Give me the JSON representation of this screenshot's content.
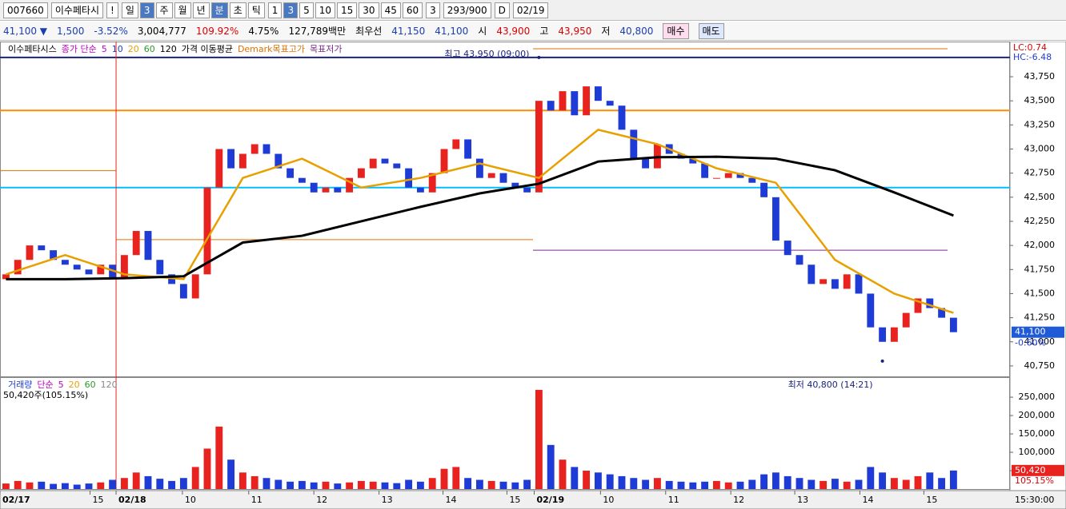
{
  "toolbar": {
    "code": "007660",
    "name": "이수페타시",
    "alert": "!",
    "periods": [
      "일",
      "3",
      "주",
      "월",
      "년",
      "분",
      "초",
      "틱"
    ],
    "intervals": [
      "1",
      "3",
      "5",
      "10",
      "15",
      "30",
      "45",
      "60"
    ],
    "count": "3",
    "shown": "293",
    "total": "/900",
    "d_label": "D",
    "date": "02/19"
  },
  "quote": {
    "price": "41,100 ▼",
    "change": "1,500",
    "rate": "-3.52%",
    "volume": "3,004,777",
    "volume_ratio": "109.92%",
    "turnover_rate": "4.75%",
    "amount": "127,789백만",
    "best_label": "최우선",
    "ask": "41,150",
    "bid": "41,100",
    "open_label": "시",
    "open": "43,900",
    "high_label": "고",
    "high": "43,950",
    "low_label": "저",
    "low": "40,800",
    "buy": "매수",
    "sell": "매도"
  },
  "chart_data": [
    {
      "type": "candlestick",
      "title": "이수페타시스",
      "ma_label": "종가 단순",
      "ma_type": "가격 이동평균",
      "demark_high": "Demark목표고가",
      "demark_low": "목표저가",
      "up_color": "#e8231f",
      "down_color": "#1f3bd6",
      "open": [
        41650,
        41700,
        41850,
        42000,
        41950,
        41850,
        41800,
        41750,
        41700,
        41800,
        41650,
        41900,
        42150,
        41850,
        41700,
        41600,
        41450,
        41700,
        42600,
        43000,
        42800,
        42950,
        43050,
        42950,
        42800,
        42700,
        42650,
        42550,
        42600,
        42550,
        42700,
        42800,
        42900,
        42850,
        42800,
        42600,
        42550,
        42750,
        43000,
        43100,
        42900,
        42700,
        42750,
        42650,
        42600,
        42550,
        43500,
        43400,
        43600,
        43350,
        43650,
        43500,
        43450,
        43200,
        42900,
        42800,
        43050,
        42950,
        42900,
        42850,
        42700,
        42700,
        42750,
        42700,
        42650,
        42500,
        42050,
        41900,
        41800,
        41600,
        41650,
        41550,
        41700,
        41500,
        41150,
        41000,
        41150,
        41300,
        41450,
        41350,
        41250
      ],
      "close": [
        41700,
        41850,
        42000,
        41950,
        41850,
        41800,
        41750,
        41700,
        41800,
        41650,
        41900,
        42150,
        41850,
        41700,
        41600,
        41450,
        41700,
        42600,
        43000,
        42800,
        42950,
        43050,
        42950,
        42800,
        42700,
        42650,
        42550,
        42600,
        42550,
        42700,
        42800,
        42900,
        42850,
        42800,
        42600,
        42550,
        42750,
        43000,
        43100,
        42900,
        42700,
        42750,
        42650,
        42600,
        42550,
        43500,
        43400,
        43600,
        43350,
        43650,
        43500,
        43450,
        43200,
        42900,
        42800,
        43050,
        42950,
        42900,
        42850,
        42700,
        42700,
        42750,
        42700,
        42650,
        42500,
        42050,
        41900,
        41800,
        41600,
        41650,
        41550,
        41700,
        41500,
        41150,
        41000,
        41150,
        41300,
        41450,
        41350,
        41250,
        41100
      ],
      "ma": [
        {
          "name": "5",
          "color": "#c000c0"
        },
        {
          "name": "10",
          "color": "#1f3bd6"
        },
        {
          "name": "20",
          "color": "#e8a000",
          "x": [
            0,
            5,
            10,
            15,
            20,
            25,
            30,
            35,
            40,
            45,
            50,
            55,
            60,
            65,
            70,
            75,
            80
          ],
          "values": [
            41700,
            41900,
            41700,
            41650,
            42700,
            42900,
            42600,
            42700,
            42850,
            42700,
            43200,
            43050,
            42800,
            42650,
            41850,
            41500,
            41300
          ]
        },
        {
          "name": "60",
          "color": "#2a9a2a"
        },
        {
          "name": "120",
          "color": "#000000",
          "x": [
            0,
            5,
            10,
            15,
            20,
            25,
            30,
            35,
            40,
            45,
            50,
            55,
            60,
            65,
            70,
            75,
            80
          ],
          "values": [
            41650,
            41650,
            41660,
            41680,
            42030,
            42100,
            42250,
            42400,
            42540,
            42640,
            42870,
            42915,
            42920,
            42900,
            42780,
            42550,
            42310
          ]
        }
      ],
      "levels": [
        {
          "value": 43950,
          "color": "#1a237e"
        },
        {
          "value": 43400,
          "color": "#ff8c00"
        },
        {
          "value": 42600,
          "color": "#00bfff"
        }
      ],
      "demark": [
        {
          "x_start": 0,
          "x_end": 9.8,
          "value": 42775,
          "color": "#e07000"
        },
        {
          "x_start": 9.8,
          "x_end": 45,
          "value": 42060,
          "color": "#e07000"
        },
        {
          "x_start": 45,
          "x_end": 80,
          "value": 44040,
          "color": "#e07000"
        },
        {
          "x_start": 45,
          "x_end": 80,
          "value": 41950,
          "color": "#7a2a8a"
        }
      ],
      "annotations": [
        {
          "text": "최고 43,950 (09:00)",
          "x": 45,
          "value": 43950
        },
        {
          "text": "최저 40,800 (14:21)",
          "x": 74,
          "value": 40800
        }
      ],
      "lc": "LC:0.74",
      "hc": "HC:-6.48",
      "current": {
        "value": 41100,
        "label": "41,100"
      },
      "change_label": "-0.60%",
      "xlim": [
        0,
        85.27
      ],
      "ylim": [
        40650,
        44090
      ],
      "yticks": [
        {
          "value": 40750,
          "label": "40,750"
        },
        {
          "value": 41000,
          "label": "41,000"
        },
        {
          "value": 41250,
          "label": "41,250"
        },
        {
          "value": 41500,
          "label": "41,500"
        },
        {
          "value": 41750,
          "label": "41,750"
        },
        {
          "value": 42000,
          "label": "42,000"
        },
        {
          "value": 42250,
          "label": "42,250"
        },
        {
          "value": 42500,
          "label": "42,500"
        },
        {
          "value": 42750,
          "label": "42,750"
        },
        {
          "value": 43000,
          "label": "43,000"
        },
        {
          "value": 43250,
          "label": "43,250"
        },
        {
          "value": 43500,
          "label": "43,500"
        },
        {
          "value": 43750,
          "label": "43,750"
        }
      ]
    },
    {
      "type": "volume",
      "title": "거래량",
      "ma_label": "단순",
      "ma": [
        {
          "name": "5",
          "color": "#c000c0"
        },
        {
          "name": "20",
          "color": "#e8a000"
        },
        {
          "name": "60",
          "color": "#2a9a2a"
        },
        {
          "name": "120",
          "color": "#888888"
        }
      ],
      "summary": "50,420주(105.15%)",
      "values": [
        15000,
        22000,
        18000,
        20000,
        14000,
        16000,
        12000,
        15000,
        18000,
        25000,
        30000,
        45000,
        35000,
        28000,
        22000,
        30000,
        60000,
        110000,
        170000,
        80000,
        45000,
        35000,
        30000,
        25000,
        20000,
        22000,
        18000,
        20000,
        15000,
        18000,
        22000,
        20000,
        18000,
        16000,
        25000,
        20000,
        30000,
        55000,
        60000,
        30000,
        25000,
        22000,
        20000,
        18000,
        25000,
        270000,
        120000,
        80000,
        60000,
        50000,
        45000,
        40000,
        35000,
        30000,
        25000,
        30000,
        22000,
        20000,
        18000,
        20000,
        22000,
        18000,
        20000,
        25000,
        40000,
        45000,
        35000,
        30000,
        25000,
        22000,
        28000,
        20000,
        25000,
        60000,
        45000,
        30000,
        25000,
        35000,
        45000,
        30000,
        50420
      ],
      "current": {
        "value": 50420,
        "label": "50,420"
      },
      "ratio_label": "105.15%",
      "ylim": [
        0,
        298000
      ],
      "yticks": [
        {
          "value": 50000,
          "label": "50,000"
        },
        {
          "value": 100000,
          "label": "100,000"
        },
        {
          "value": 150000,
          "label": "150,000"
        },
        {
          "value": 200000,
          "label": "200,000"
        },
        {
          "value": 250000,
          "label": "250,000"
        }
      ],
      "xticks": [
        {
          "value": 0,
          "label": "02/17"
        },
        {
          "value": 7.6,
          "label": "15"
        },
        {
          "value": 9.8,
          "label": "02/18"
        },
        {
          "value": 15.4,
          "label": "10"
        },
        {
          "value": 21,
          "label": "11"
        },
        {
          "value": 26.5,
          "label": "12"
        },
        {
          "value": 32,
          "label": "13"
        },
        {
          "value": 37.4,
          "label": "14"
        },
        {
          "value": 42.8,
          "label": "15"
        },
        {
          "value": 45.1,
          "label": "02/19"
        },
        {
          "value": 50.7,
          "label": "10"
        },
        {
          "value": 56.2,
          "label": "11"
        },
        {
          "value": 61.7,
          "label": "12"
        },
        {
          "value": 67.1,
          "label": "13"
        },
        {
          "value": 72.6,
          "label": "14"
        },
        {
          "value": 78,
          "label": "15"
        }
      ],
      "time_label": "15:30:00"
    }
  ]
}
